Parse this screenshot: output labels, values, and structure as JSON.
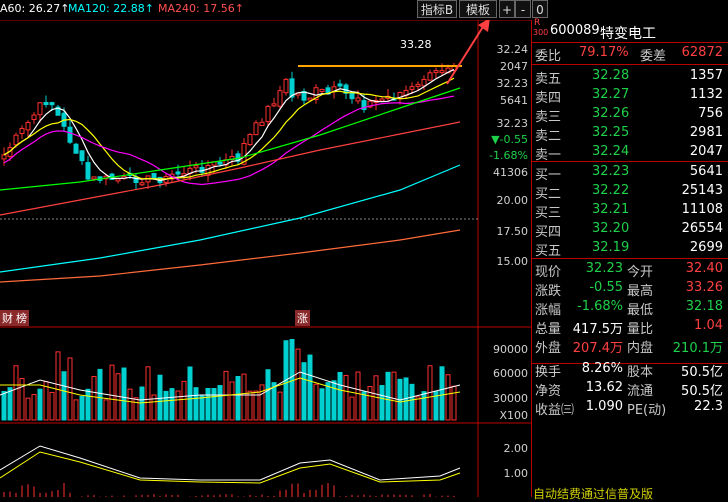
{
  "toolbar": {
    "ma60": "A60: 26.27↑",
    "ma120": "MA120: 22.88↑",
    "ma240": "MA240: 17.56↑",
    "indicator_btn": "指标B",
    "template_btn": "模板",
    "plus_btn": "+",
    "minus_btn": "-",
    "zero_btn": "0"
  },
  "chart": {
    "price_ticks": [
      "32.24",
      "2047",
      "32.23",
      "5641",
      "32.23",
      "▼-0.55",
      "-1.68%",
      "41306",
      "20.00",
      "17.50",
      "15.00"
    ],
    "vol_ticks": [
      "90000",
      "60000",
      "30000",
      "X100"
    ],
    "macd_ticks": [
      "2.00",
      "1.00"
    ],
    "high_label": "33.28",
    "marker_cai": "财",
    "marker_bang": "榜",
    "marker_zhang": "涨",
    "bottom_banner": "自动结费通过信普及版",
    "colors": {
      "up": "#ff3030",
      "down": "#00d0d0",
      "ma5": "#ffffff",
      "ma10": "#ffff00",
      "ma20": "#ff00ff",
      "ma60": "#00ff00",
      "ma120": "#00ffff",
      "ma240": "#ff4040"
    }
  },
  "panel": {
    "code": "600089",
    "name": "特变电工",
    "badge_r": "R",
    "badge_300": "300",
    "weibi_label": "委比",
    "weibi_value": "79.17%",
    "weicha_label": "委差",
    "weicha_value": "62872",
    "asks": [
      {
        "label": "卖五",
        "price": "32.28",
        "vol": "1357"
      },
      {
        "label": "卖四",
        "price": "32.27",
        "vol": "1132"
      },
      {
        "label": "卖三",
        "price": "32.26",
        "vol": "756"
      },
      {
        "label": "卖二",
        "price": "32.25",
        "vol": "2981"
      },
      {
        "label": "卖一",
        "price": "32.24",
        "vol": "2047"
      }
    ],
    "bids": [
      {
        "label": "买一",
        "price": "32.23",
        "vol": "5641"
      },
      {
        "label": "买二",
        "price": "32.22",
        "vol": "25143"
      },
      {
        "label": "买三",
        "price": "32.21",
        "vol": "11108"
      },
      {
        "label": "买四",
        "price": "32.20",
        "vol": "26554"
      },
      {
        "label": "买五",
        "price": "32.19",
        "vol": "2699"
      }
    ],
    "stats": [
      {
        "l1": "现价",
        "v1": "32.23",
        "c1": "grn",
        "l2": "今开",
        "v2": "32.40",
        "c2": "red"
      },
      {
        "l1": "涨跌",
        "v1": "-0.55",
        "c1": "grn",
        "l2": "最高",
        "v2": "33.26",
        "c2": "red"
      },
      {
        "l1": "涨幅",
        "v1": "-1.68%",
        "c1": "grn",
        "l2": "最低",
        "v2": "32.18",
        "c2": "grn"
      },
      {
        "l1": "总量",
        "v1": "417.5万",
        "c1": "wht",
        "l2": "量比",
        "v2": "1.04",
        "c2": "red"
      },
      {
        "l1": "外盘",
        "v1": "207.4万",
        "c1": "red",
        "l2": "内盘",
        "v2": "210.1万",
        "c2": "grn"
      },
      {
        "l1": "换手",
        "v1": "8.26%",
        "c1": "wht",
        "l2": "股本",
        "v2": "50.5亿",
        "c2": "wht"
      },
      {
        "l1": "净资",
        "v1": "13.62",
        "c1": "wht",
        "l2": "流通",
        "v2": "50.5亿",
        "c2": "wht"
      },
      {
        "l1": "收益㈢",
        "v1": "1.090",
        "c1": "wht",
        "l2": "PE(动)",
        "v2": "22.3",
        "c2": "wht"
      }
    ]
  }
}
